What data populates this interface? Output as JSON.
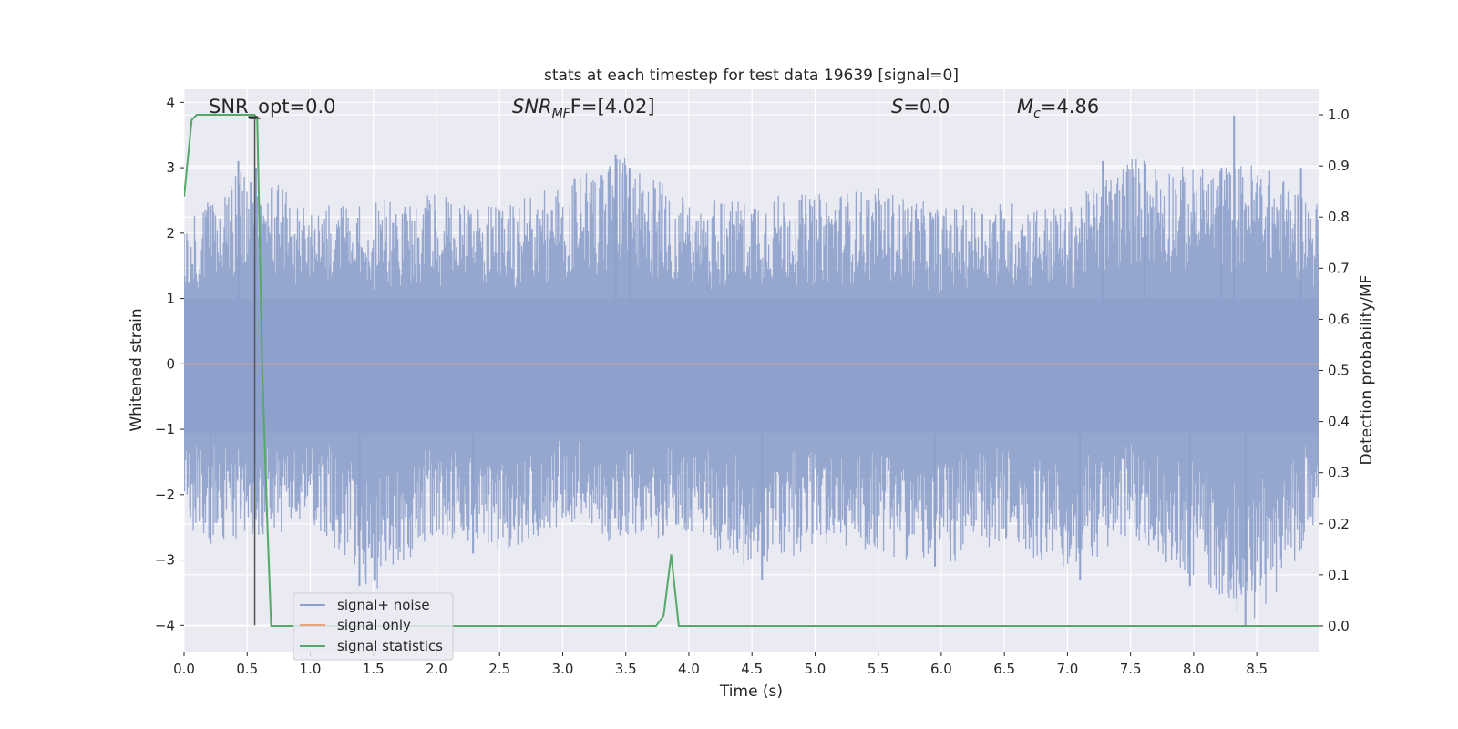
{
  "chart_data": {
    "type": "line",
    "title": "stats at each timestep for test data 19639 [signal=0]",
    "xlabel": "Time (s)",
    "ylabel": "Whitened strain",
    "y2label": "Detection probability/MF",
    "xlim": [
      0.0,
      8.99
    ],
    "ylim": [
      -4.4,
      4.2
    ],
    "y2lim": [
      -0.05,
      1.05
    ],
    "x_ticks": [
      "0.0",
      "0.5",
      "1.0",
      "1.5",
      "2.0",
      "2.5",
      "3.0",
      "3.5",
      "4.0",
      "4.5",
      "5.0",
      "5.5",
      "6.0",
      "6.5",
      "7.0",
      "7.5",
      "8.0",
      "8.5"
    ],
    "y_ticks": [
      "4",
      "3",
      "2",
      "1",
      "0",
      "−1",
      "−2",
      "−3",
      "−4"
    ],
    "y2_ticks": [
      "1.0",
      "0.9",
      "0.8",
      "0.7",
      "0.6",
      "0.5",
      "0.4",
      "0.3",
      "0.2",
      "0.1",
      "0.0"
    ],
    "grid": true,
    "legend_position": "lower-left",
    "annotations": {
      "snr_opt_prefix": "SNR_opt=",
      "snr_opt_value": "0.0",
      "snr_mf_base": "SNR",
      "snr_mf_sub": "MF",
      "snr_mf_rest": "F=[4.02]",
      "s_symbol": "S",
      "s_value": "=0.0",
      "mc_base": "M",
      "mc_sub": "c",
      "mc_value": "=4.86"
    },
    "marker_line": {
      "x": 0.56,
      "y_from": -4.0,
      "y_to": 3.75
    },
    "series": [
      {
        "name": "signal+ noise",
        "color": "#8da0cb",
        "axis": "left",
        "envelope": {
          "x": [
            0.0,
            0.5,
            1.0,
            1.5,
            2.0,
            2.5,
            3.0,
            3.5,
            4.0,
            4.5,
            5.0,
            5.5,
            6.0,
            6.5,
            7.0,
            7.5,
            8.0,
            8.5,
            8.99
          ],
          "upper": [
            2.2,
            3.1,
            2.4,
            2.5,
            2.6,
            2.4,
            2.8,
            3.2,
            2.5,
            2.6,
            2.6,
            2.7,
            2.4,
            2.5,
            2.4,
            3.2,
            3.0,
            3.1,
            2.5
          ],
          "lower": [
            -2.6,
            -2.8,
            -2.4,
            -3.5,
            -2.6,
            -2.9,
            -2.5,
            -2.8,
            -2.6,
            -3.2,
            -2.8,
            -2.9,
            -3.1,
            -2.8,
            -3.2,
            -2.7,
            -3.3,
            -4.0,
            -2.4
          ]
        },
        "peaks": [
          {
            "x": 0.43,
            "y": 3.1
          },
          {
            "x": 0.57,
            "y": 3.0
          },
          {
            "x": 3.42,
            "y": 3.2
          },
          {
            "x": 3.53,
            "y": 3.0
          },
          {
            "x": 7.28,
            "y": 3.1
          },
          {
            "x": 7.61,
            "y": 3.1
          },
          {
            "x": 8.22,
            "y": 3.0
          },
          {
            "x": 8.32,
            "y": 3.8
          },
          {
            "x": 8.85,
            "y": 3.0
          },
          {
            "x": 1.39,
            "y": -3.4
          },
          {
            "x": 4.58,
            "y": -3.3
          },
          {
            "x": 5.95,
            "y": -3.1
          },
          {
            "x": 7.1,
            "y": -3.3
          },
          {
            "x": 7.97,
            "y": -3.4
          },
          {
            "x": 8.41,
            "y": -4.0
          },
          {
            "x": 2.29,
            "y": -2.9
          },
          {
            "x": 0.21,
            "y": -2.75
          }
        ]
      },
      {
        "name": "signal only",
        "color": "#e5a47e",
        "axis": "left",
        "x": [
          0.0,
          8.99
        ],
        "y": [
          0.0,
          0.0
        ]
      },
      {
        "name": "signal statistics",
        "color": "#55a868",
        "axis": "right",
        "x": [
          0.0,
          0.06,
          0.1,
          0.2,
          0.56,
          0.58,
          0.62,
          0.66,
          0.69,
          3.74,
          3.8,
          3.86,
          3.92,
          8.99
        ],
        "y": [
          0.84,
          0.99,
          1.0,
          1.0,
          1.0,
          0.99,
          0.5,
          0.2,
          0.0,
          0.0,
          0.02,
          0.14,
          0.0,
          0.0
        ]
      }
    ]
  }
}
